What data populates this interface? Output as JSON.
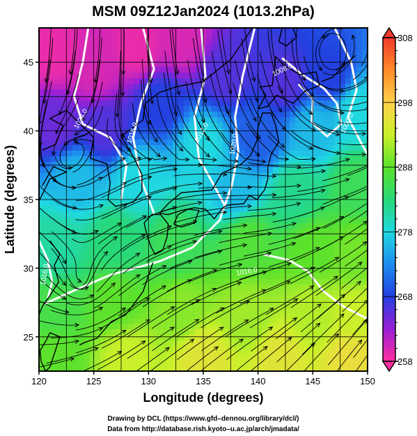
{
  "chart_data": {
    "type": "heatmap",
    "title": "MSM 09Z12Jan2024 (1013.2hPa)",
    "xlabel": "Longitude (degrees)",
    "ylabel": "Latitude  (degrees)",
    "xlim": [
      120,
      150
    ],
    "ylim": [
      22.5,
      47.5
    ],
    "x_ticks": [
      "120",
      "125",
      "130",
      "135",
      "140",
      "145",
      "150"
    ],
    "y_ticks": [
      "25",
      "30",
      "35",
      "40",
      "45"
    ],
    "grid": true,
    "fill_variable": "temperature (K)",
    "colorbar": {
      "min": 258,
      "max": 308,
      "ticks": [
        "258",
        "268",
        "278",
        "288",
        "298",
        "308"
      ],
      "colors": [
        "#ff2fa0",
        "#9a1fd4",
        "#2340e0",
        "#1e8cf0",
        "#20d8e0",
        "#28d878",
        "#5de22c",
        "#c9f02a",
        "#ffd24a",
        "#ff8a2a",
        "#f03a2a"
      ]
    },
    "contours": {
      "color": "#ffffff",
      "labels": [
        "1024.0",
        "1016.0",
        "1012.0",
        "1020.0",
        "1008.0",
        "1000.0",
        "1016.0",
        "1016.0"
      ]
    },
    "temperature_field": [
      {
        "lon": 121.5,
        "lat": 45.5,
        "value": 259
      },
      {
        "lon": 125.0,
        "lat": 44.5,
        "value": 260
      },
      {
        "lon": 129.0,
        "lat": 46.0,
        "value": 259
      },
      {
        "lon": 133.0,
        "lat": 46.5,
        "value": 260
      },
      {
        "lon": 121.5,
        "lat": 40.5,
        "value": 265
      },
      {
        "lon": 126.0,
        "lat": 40.0,
        "value": 266
      },
      {
        "lon": 131.0,
        "lat": 42.0,
        "value": 268
      },
      {
        "lon": 137.0,
        "lat": 44.0,
        "value": 266
      },
      {
        "lon": 142.5,
        "lat": 43.5,
        "value": 266
      },
      {
        "lon": 146.5,
        "lat": 44.0,
        "value": 268
      },
      {
        "lon": 140.0,
        "lat": 39.5,
        "value": 270
      },
      {
        "lon": 145.0,
        "lat": 40.0,
        "value": 276
      },
      {
        "lon": 149.0,
        "lat": 41.5,
        "value": 278
      },
      {
        "lon": 135.0,
        "lat": 39.0,
        "value": 278
      },
      {
        "lon": 123.5,
        "lat": 36.5,
        "value": 276
      },
      {
        "lon": 129.0,
        "lat": 36.5,
        "value": 278
      },
      {
        "lon": 138.0,
        "lat": 35.5,
        "value": 276
      },
      {
        "lon": 143.5,
        "lat": 35.5,
        "value": 282
      },
      {
        "lon": 149.0,
        "lat": 36.0,
        "value": 285
      },
      {
        "lon": 121.5,
        "lat": 31.5,
        "value": 281
      },
      {
        "lon": 127.0,
        "lat": 32.0,
        "value": 283
      },
      {
        "lon": 132.5,
        "lat": 31.5,
        "value": 285
      },
      {
        "lon": 139.0,
        "lat": 32.0,
        "value": 287
      },
      {
        "lon": 145.0,
        "lat": 31.5,
        "value": 288
      },
      {
        "lon": 149.0,
        "lat": 31.0,
        "value": 289
      },
      {
        "lon": 121.5,
        "lat": 27.0,
        "value": 286
      },
      {
        "lon": 127.0,
        "lat": 27.5,
        "value": 288
      },
      {
        "lon": 133.0,
        "lat": 27.0,
        "value": 290
      },
      {
        "lon": 139.0,
        "lat": 26.5,
        "value": 291
      },
      {
        "lon": 145.0,
        "lat": 26.5,
        "value": 292
      },
      {
        "lon": 149.0,
        "lat": 26.5,
        "value": 293
      },
      {
        "lon": 121.5,
        "lat": 23.5,
        "value": 288
      },
      {
        "lon": 128.0,
        "lat": 23.5,
        "value": 293
      },
      {
        "lon": 135.0,
        "lat": 23.5,
        "value": 295
      },
      {
        "lon": 142.0,
        "lat": 23.5,
        "value": 295
      },
      {
        "lon": 148.5,
        "lat": 23.5,
        "value": 296
      }
    ]
  },
  "credits": {
    "line1": "Drawing by DCL (https://www.gfd–dennou.org/library/dcl/)",
    "line2": "Data from http://database.rish.kyoto–u.ac.jp/arch/jmadata/"
  }
}
